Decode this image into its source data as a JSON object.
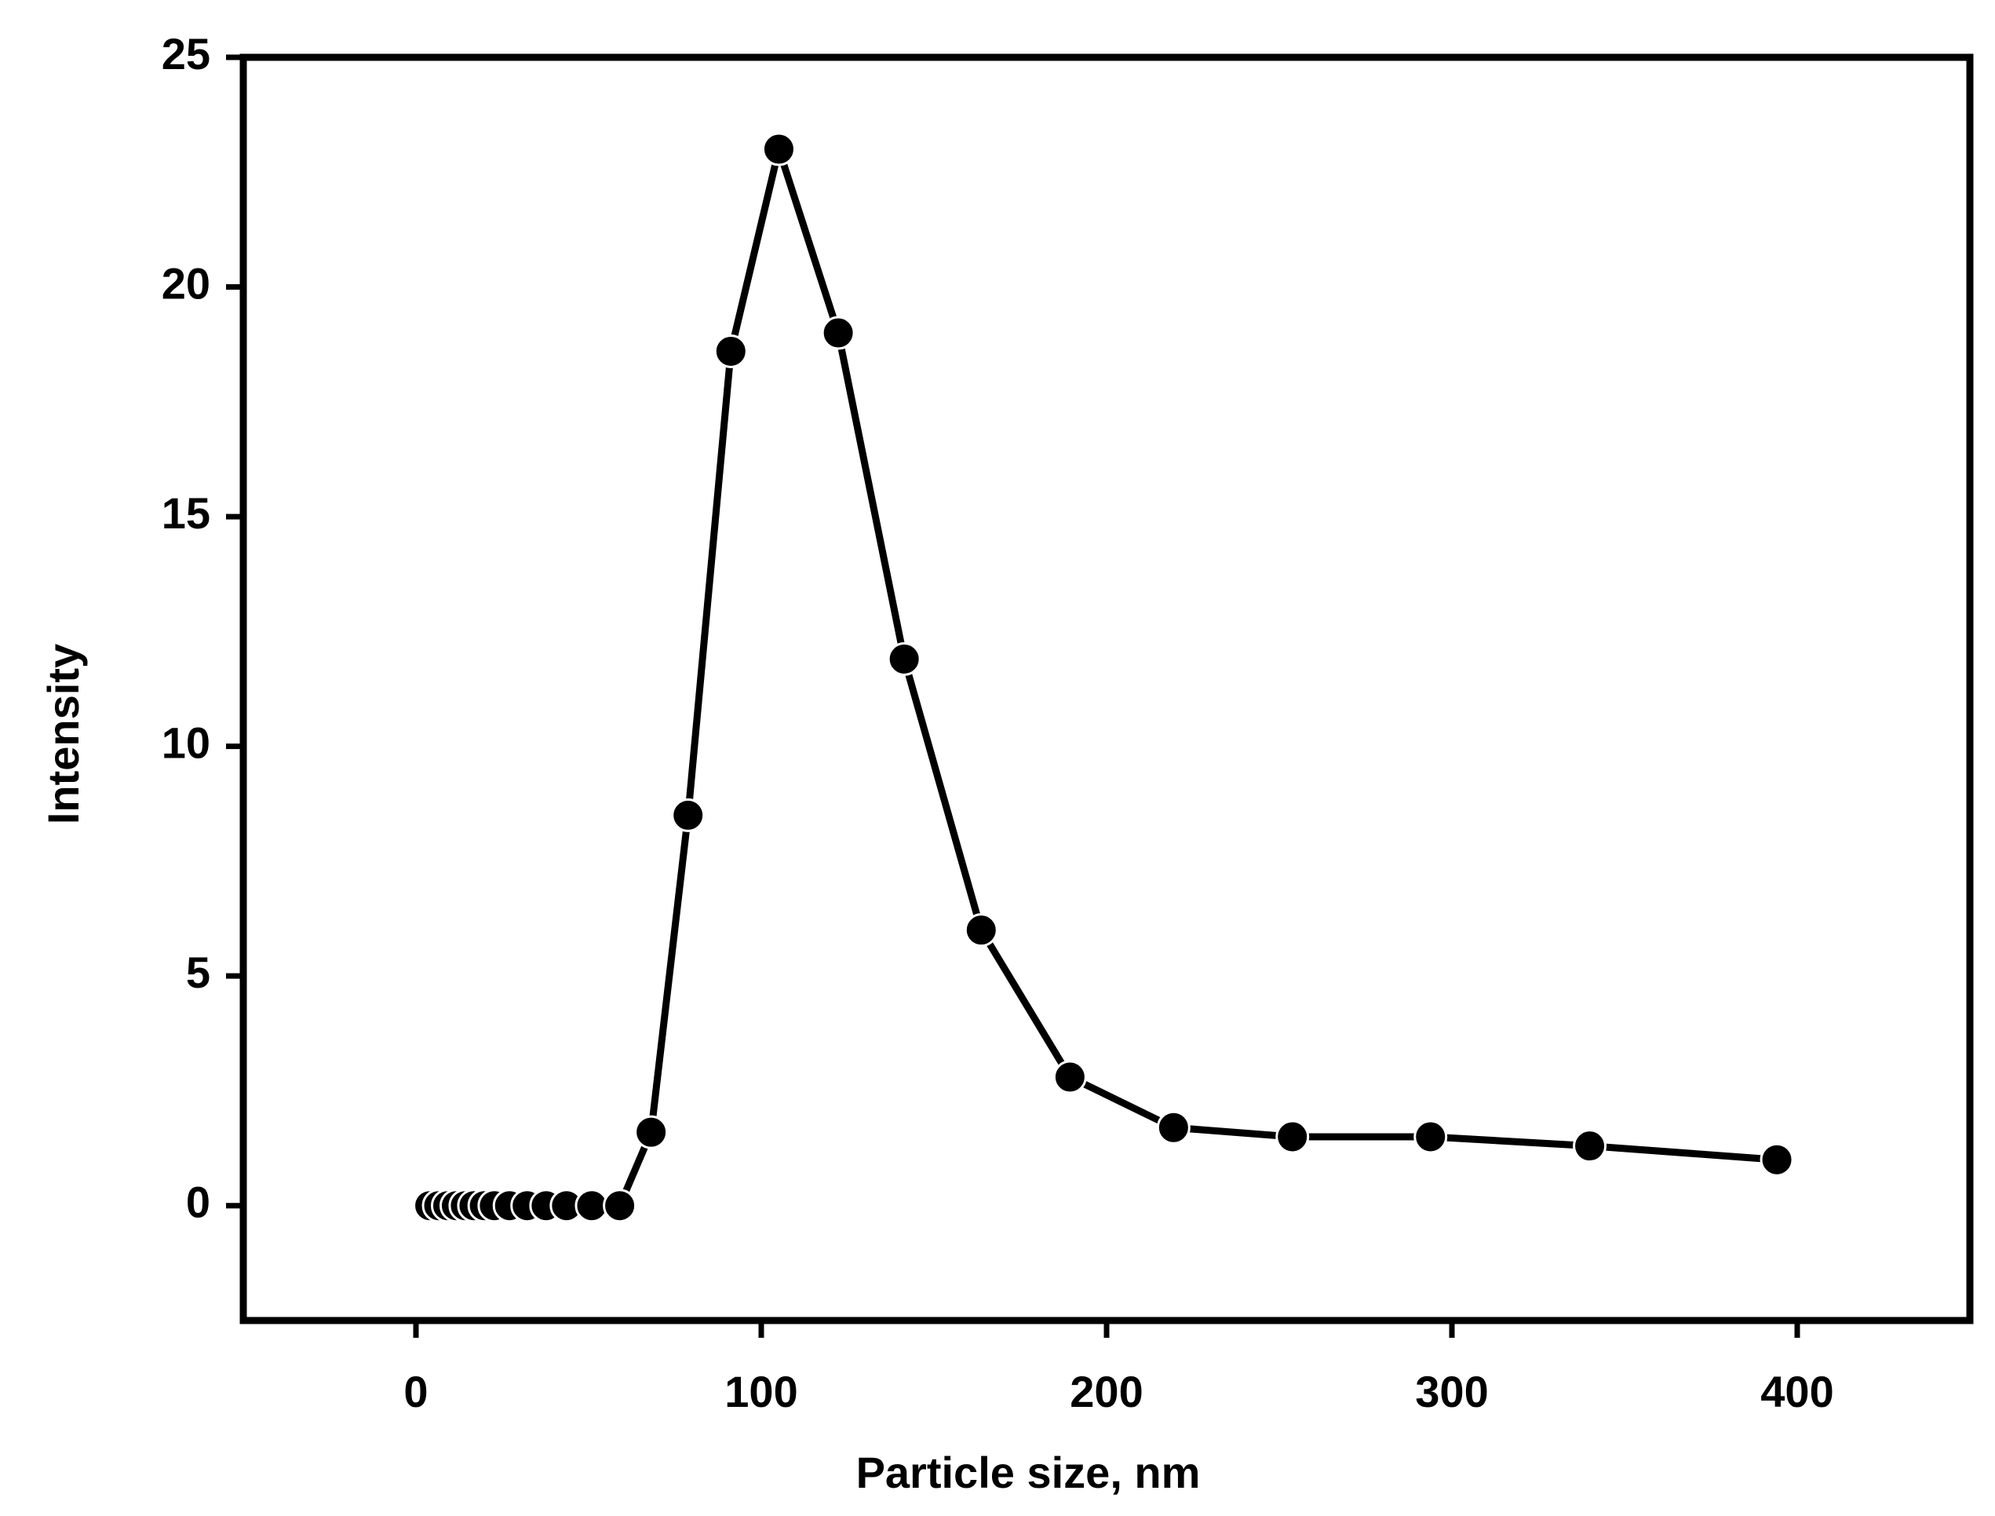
{
  "chart_data": {
    "type": "line",
    "x_label": "Particle size, nm",
    "y_label": "Intensity",
    "x": [
      4,
      6.6,
      9.2,
      11.7,
      14.3,
      16.8,
      19.8,
      22.7,
      27.1,
      32.2,
      37.7,
      43.6,
      50.9,
      59,
      68.1,
      78.8,
      91.2,
      105.1,
      122.3,
      141.4,
      163.7,
      189.4,
      219.4,
      253.8,
      293.8,
      339.9,
      394.1
    ],
    "series": [
      {
        "color": "#000000",
        "values": [
          0,
          0,
          0,
          0,
          0,
          0,
          0,
          0,
          0,
          0,
          0,
          0,
          0,
          0,
          1.6,
          8.5,
          18.6,
          23,
          19,
          11.9,
          6.0,
          2.8,
          1.7,
          1.5,
          1.5,
          1.3,
          1.0
        ]
      }
    ],
    "xlim": [
      -50,
      450
    ],
    "ylim": [
      -2.5,
      25
    ],
    "xticks": [
      0,
      100,
      200,
      300,
      400
    ],
    "yticks": [
      0,
      5,
      10,
      15,
      20,
      25
    ]
  }
}
